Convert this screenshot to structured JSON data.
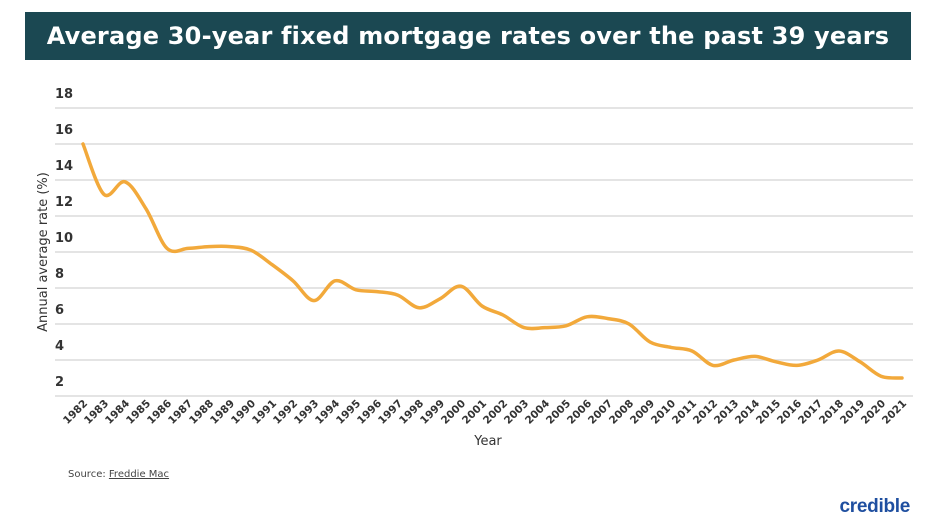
{
  "chart_data": {
    "type": "line",
    "title": "Average 30-year fixed mortgage rates over the past 39 years",
    "xlabel": "Year",
    "ylabel": "Annual average rate (%)",
    "ylim": [
      2,
      18
    ],
    "yticks": [
      2,
      4,
      6,
      8,
      10,
      12,
      14,
      16,
      18
    ],
    "grid": true,
    "line_color": "#f2a93b",
    "x": [
      1982,
      1983,
      1984,
      1985,
      1986,
      1987,
      1988,
      1989,
      1990,
      1991,
      1992,
      1993,
      1994,
      1995,
      1996,
      1997,
      1998,
      1999,
      2000,
      2001,
      2002,
      2003,
      2004,
      2005,
      2006,
      2007,
      2008,
      2009,
      2010,
      2011,
      2012,
      2013,
      2014,
      2015,
      2016,
      2017,
      2018,
      2019,
      2020,
      2021
    ],
    "series": [
      {
        "values": [
          16.0,
          13.2,
          13.9,
          12.4,
          10.2,
          10.2,
          10.3,
          10.3,
          10.1,
          9.3,
          8.4,
          7.3,
          8.4,
          7.9,
          7.8,
          7.6,
          6.9,
          7.4,
          8.1,
          7.0,
          6.5,
          5.8,
          5.8,
          5.9,
          6.4,
          6.3,
          6.0,
          5.0,
          4.7,
          4.5,
          3.7,
          4.0,
          4.2,
          3.9,
          3.7,
          4.0,
          4.5,
          3.9,
          3.1,
          3.0
        ]
      }
    ]
  },
  "footer": {
    "source_label": "Source:",
    "source_link": "Freddie Mac",
    "logo": "credible"
  }
}
